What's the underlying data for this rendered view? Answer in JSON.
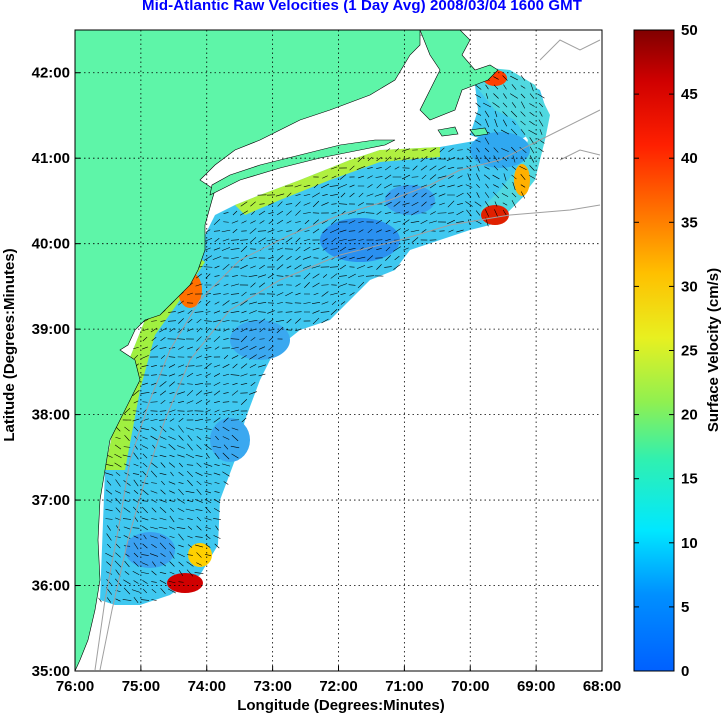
{
  "title": "Mid-Atlantic Raw Velocities (1 Day Avg) 2008/03/04 1600 GMT",
  "map": {
    "xlabel": "Longitude (Degrees:Minutes)",
    "ylabel": "Latitude (Degrees:Minutes)",
    "lon_range": [
      -76,
      -68
    ],
    "lat_range": [
      35,
      42.5
    ],
    "lon_ticks": [
      "76:00",
      "75:00",
      "74:00",
      "73:00",
      "72:00",
      "71:00",
      "70:00",
      "69:00",
      "68:00"
    ],
    "lat_ticks": [
      "35:00",
      "36:00",
      "37:00",
      "38:00",
      "39:00",
      "40:00",
      "41:00",
      "42:00"
    ],
    "grid": "dotted",
    "land_color": "#5ef5a8",
    "bathymetry_color": "#a0a0a0"
  },
  "colorbar": {
    "label": "Surface Velocity (cm/s)",
    "min": 0,
    "max": 50,
    "tick_labels": [
      "0",
      "5",
      "10",
      "15",
      "20",
      "25",
      "30",
      "35",
      "40",
      "45",
      "50"
    ],
    "colormap": "jet"
  }
}
